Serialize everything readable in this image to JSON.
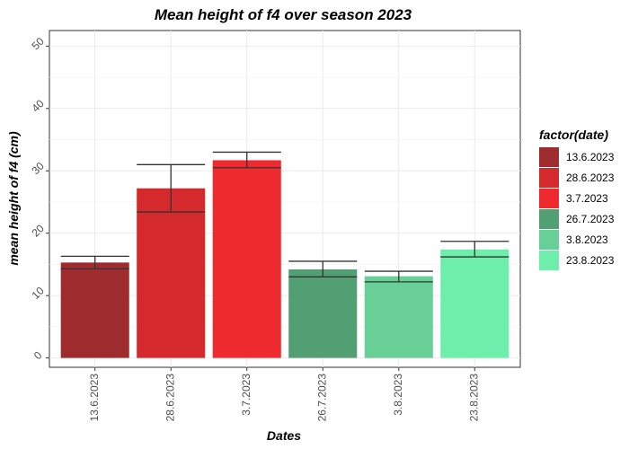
{
  "chart_data": {
    "type": "bar",
    "title": "Mean height of f4 over season 2023",
    "xlabel": "Dates",
    "ylabel": "mean height of f4 (cm)",
    "categories": [
      "13.6.2023",
      "28.6.2023",
      "3.7.2023",
      "26.7.2023",
      "3.8.2023",
      "23.8.2023"
    ],
    "values": [
      15.3,
      27.2,
      31.7,
      14.2,
      13.1,
      17.4
    ],
    "error_low": [
      14.3,
      23.4,
      30.5,
      13.0,
      12.2,
      16.2
    ],
    "error_high": [
      16.3,
      31.0,
      33.0,
      15.5,
      13.9,
      18.7
    ],
    "colors": [
      "#9e2b2e",
      "#d42a2e",
      "#ee2a2f",
      "#529f74",
      "#68cf97",
      "#6eeeab"
    ],
    "ylim": [
      -1.5,
      52.5
    ],
    "yticks": [
      0,
      10,
      20,
      30,
      40,
      50
    ],
    "grid": true,
    "legend": {
      "title": "factor(date)",
      "position": "right",
      "entries": [
        "13.6.2023",
        "28.6.2023",
        "3.7.2023",
        "26.7.2023",
        "3.8.2023",
        "23.8.2023"
      ]
    }
  }
}
